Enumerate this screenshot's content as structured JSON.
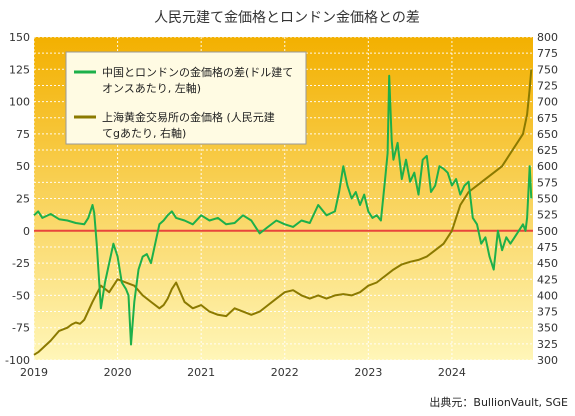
{
  "chart_data": {
    "type": "line",
    "title": "人民元建て金価格とロンドン金価格との差",
    "source": "出典元：BullionVault, SGE",
    "x_ticks": [
      "2019",
      "2020",
      "2021",
      "2022",
      "2023",
      "2024"
    ],
    "x_range": [
      2019.0,
      2024.97
    ],
    "y_left": {
      "range": [
        -100,
        150
      ],
      "ticks": [
        150,
        125,
        100,
        75,
        50,
        25,
        0,
        -25,
        -50,
        -75,
        -100
      ]
    },
    "y_right": {
      "range": [
        300,
        800
      ],
      "ticks": [
        800,
        775,
        750,
        725,
        700,
        675,
        650,
        625,
        600,
        575,
        550,
        525,
        500,
        475,
        450,
        425,
        400,
        375,
        350,
        325,
        300
      ]
    },
    "zero_line_color": "#e8453c",
    "background_gradient": [
      "#f3b000",
      "#fff6b8"
    ],
    "series": [
      {
        "name": "中国とロンドンの金価格の差(ドル建てオンスあたり, 左軸)",
        "axis": "left",
        "color": "#1db04a",
        "x": [
          2019.0,
          2019.05,
          2019.1,
          2019.2,
          2019.3,
          2019.4,
          2019.5,
          2019.6,
          2019.65,
          2019.7,
          2019.72,
          2019.75,
          2019.8,
          2019.85,
          2019.9,
          2019.95,
          2020.0,
          2020.05,
          2020.1,
          2020.13,
          2020.16,
          2020.2,
          2020.25,
          2020.3,
          2020.35,
          2020.4,
          2020.45,
          2020.5,
          2020.55,
          2020.6,
          2020.65,
          2020.7,
          2020.8,
          2020.9,
          2021.0,
          2021.1,
          2021.2,
          2021.3,
          2021.4,
          2021.5,
          2021.6,
          2021.7,
          2021.8,
          2021.9,
          2022.0,
          2022.1,
          2022.2,
          2022.3,
          2022.4,
          2022.5,
          2022.6,
          2022.65,
          2022.7,
          2022.75,
          2022.8,
          2022.85,
          2022.9,
          2022.95,
          2023.0,
          2023.05,
          2023.1,
          2023.15,
          2023.2,
          2023.23,
          2023.25,
          2023.28,
          2023.3,
          2023.35,
          2023.4,
          2023.45,
          2023.5,
          2023.55,
          2023.6,
          2023.65,
          2023.7,
          2023.75,
          2023.8,
          2023.85,
          2023.9,
          2023.95,
          2024.0,
          2024.05,
          2024.1,
          2024.15,
          2024.2,
          2024.25,
          2024.3,
          2024.35,
          2024.4,
          2024.45,
          2024.5,
          2024.55,
          2024.6,
          2024.65,
          2024.7,
          2024.75,
          2024.8,
          2024.85,
          2024.88,
          2024.9,
          2024.93,
          2024.95
        ],
        "y": [
          12,
          15,
          10,
          13,
          9,
          8,
          6,
          5,
          10,
          20,
          14,
          -10,
          -60,
          -40,
          -25,
          -10,
          -20,
          -40,
          -45,
          -50,
          -88,
          -55,
          -30,
          -20,
          -18,
          -25,
          -10,
          5,
          8,
          12,
          15,
          10,
          8,
          5,
          12,
          8,
          10,
          5,
          6,
          12,
          8,
          -2,
          3,
          8,
          5,
          3,
          8,
          6,
          20,
          12,
          15,
          30,
          50,
          35,
          25,
          30,
          20,
          28,
          15,
          10,
          12,
          8,
          40,
          60,
          120,
          70,
          55,
          68,
          40,
          55,
          38,
          45,
          28,
          55,
          58,
          30,
          35,
          50,
          48,
          45,
          35,
          40,
          28,
          35,
          38,
          10,
          5,
          -10,
          -5,
          -20,
          -30,
          0,
          -15,
          -5,
          -10,
          -5,
          0,
          5,
          0,
          10,
          50,
          25
        ]
      },
      {
        "name": "上海黄金交易所の金価格 (人民元建てgあたり, 右軸)",
        "axis": "right",
        "color": "#8b7a00",
        "x": [
          2019.0,
          2019.05,
          2019.1,
          2019.2,
          2019.3,
          2019.4,
          2019.45,
          2019.5,
          2019.55,
          2019.6,
          2019.7,
          2019.8,
          2019.9,
          2020.0,
          2020.1,
          2020.2,
          2020.3,
          2020.4,
          2020.5,
          2020.55,
          2020.6,
          2020.65,
          2020.7,
          2020.8,
          2020.9,
          2021.0,
          2021.1,
          2021.2,
          2021.3,
          2021.4,
          2021.5,
          2021.6,
          2021.7,
          2021.8,
          2021.9,
          2022.0,
          2022.1,
          2022.2,
          2022.3,
          2022.4,
          2022.5,
          2022.6,
          2022.7,
          2022.8,
          2022.9,
          2023.0,
          2023.1,
          2023.2,
          2023.3,
          2023.4,
          2023.5,
          2023.6,
          2023.7,
          2023.8,
          2023.9,
          2024.0,
          2024.1,
          2024.2,
          2024.3,
          2024.4,
          2024.5,
          2024.6,
          2024.7,
          2024.8,
          2024.85,
          2024.9,
          2024.93,
          2024.95
        ],
        "y": [
          308,
          312,
          318,
          330,
          345,
          350,
          355,
          358,
          356,
          362,
          390,
          415,
          405,
          425,
          420,
          415,
          400,
          390,
          380,
          385,
          395,
          410,
          420,
          390,
          380,
          385,
          375,
          370,
          368,
          380,
          375,
          370,
          375,
          385,
          395,
          405,
          408,
          400,
          395,
          400,
          395,
          400,
          402,
          400,
          405,
          415,
          420,
          430,
          440,
          448,
          452,
          455,
          460,
          470,
          480,
          500,
          540,
          560,
          570,
          580,
          590,
          600,
          620,
          640,
          650,
          680,
          720,
          750
        ]
      }
    ]
  }
}
